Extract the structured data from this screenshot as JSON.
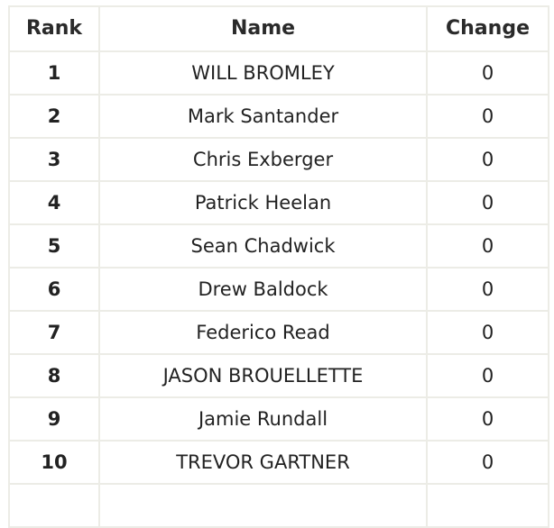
{
  "table": {
    "headers": {
      "rank": "Rank",
      "name": "Name",
      "change": "Change"
    },
    "rows": [
      {
        "rank": "1",
        "name": "WILL BROMLEY",
        "change": "0"
      },
      {
        "rank": "2",
        "name": "Mark Santander",
        "change": "0"
      },
      {
        "rank": "3",
        "name": "Chris Exberger",
        "change": "0"
      },
      {
        "rank": "4",
        "name": "Patrick Heelan",
        "change": "0"
      },
      {
        "rank": "5",
        "name": "Sean Chadwick",
        "change": "0"
      },
      {
        "rank": "6",
        "name": "Drew Baldock",
        "change": "0"
      },
      {
        "rank": "7",
        "name": "Federico Read",
        "change": "0"
      },
      {
        "rank": "8",
        "name": "JASON BROUELLETTE",
        "change": "0"
      },
      {
        "rank": "9",
        "name": "Jamie Rundall",
        "change": "0"
      },
      {
        "rank": "10",
        "name": "TREVOR GARTNER",
        "change": "0"
      },
      {
        "rank": "",
        "name": "",
        "change": ""
      }
    ]
  }
}
